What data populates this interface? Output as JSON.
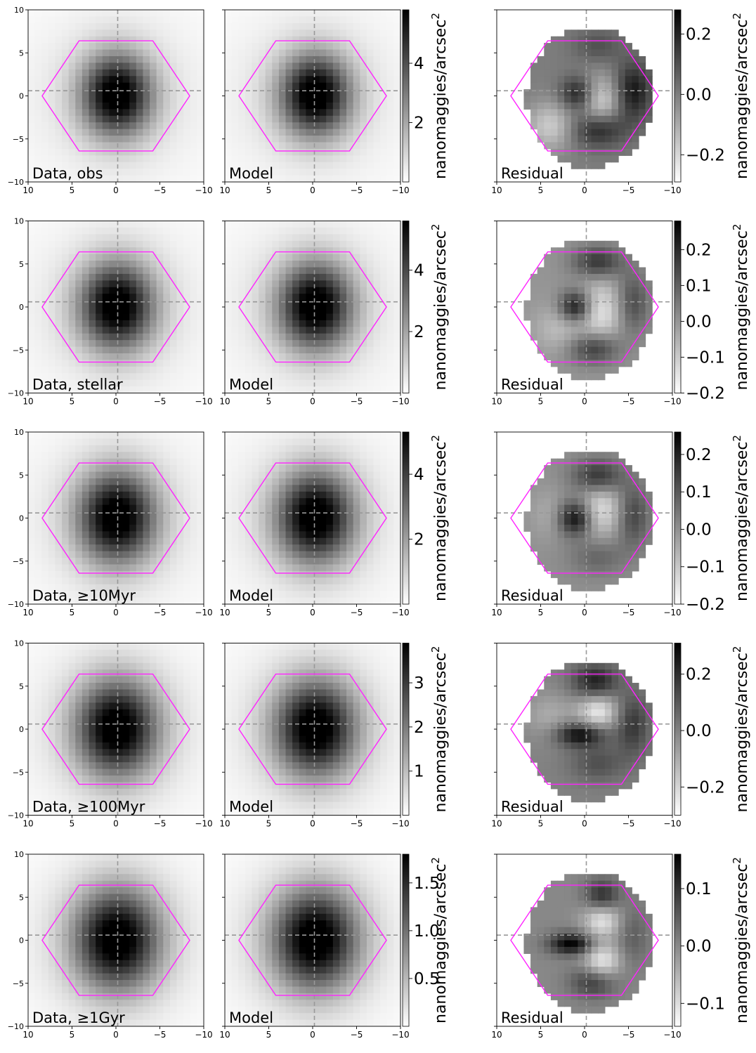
{
  "chart_data": {
    "type": "heatmap",
    "grid": false,
    "colormap": "gray_r",
    "x_axis": {
      "range": [
        10,
        -10
      ],
      "ticks": [
        10,
        5,
        0,
        -5,
        -10
      ],
      "tick_labels": [
        "10",
        "5",
        "0",
        "−5",
        "−10"
      ]
    },
    "y_axis": {
      "range": [
        -10,
        10
      ],
      "ticks": [
        10,
        5,
        0,
        -5,
        -10
      ],
      "tick_labels": [
        "10",
        "5",
        "0",
        "−5",
        "−10"
      ]
    },
    "crosshair": {
      "x": -0.2,
      "y": 0.6,
      "color": "#999999"
    },
    "hexagon": {
      "circumradius": 8.4,
      "center": [
        0,
        0
      ],
      "color": "#ff22ff"
    },
    "colorbar_label": "nanomaggies/arcsec",
    "colorbar_label_superscript": "2",
    "rows": [
      {
        "data_label": "Data, obs",
        "model_label": "Model",
        "residual_label": "Residual",
        "image_cbar": {
          "range": [
            0,
            5.8
          ],
          "ticks": [
            2,
            4
          ],
          "tick_labels": [
            "2",
            "4"
          ]
        },
        "residual_cbar": {
          "range": [
            -0.29,
            0.28
          ],
          "ticks": [
            -0.2,
            0.0,
            0.2
          ],
          "tick_labels": [
            "−0.2",
            "0.0",
            "0.2"
          ]
        },
        "residual_blobs": [
          {
            "x": 0.7,
            "y": 0.2,
            "amp": 0.24,
            "sx": 1.4,
            "sy": 1.4
          },
          {
            "x": -1.5,
            "y": -3.8,
            "amp": 0.24,
            "sx": 2.2,
            "sy": 1.5
          },
          {
            "x": -1.8,
            "y": -0.8,
            "amp": -0.22,
            "sx": 1.8,
            "sy": 2.2
          },
          {
            "x": -1.5,
            "y": 5.8,
            "amp": 0.1,
            "sx": 2.0,
            "sy": 1.4
          },
          {
            "x": -5.5,
            "y": 0.5,
            "amp": 0.24,
            "sx": 1.5,
            "sy": 2.4
          },
          {
            "x": 3.8,
            "y": -3.5,
            "amp": -0.18,
            "sx": 2.0,
            "sy": 2.0
          }
        ]
      },
      {
        "data_label": "Data, stellar",
        "model_label": "Model",
        "residual_label": "Residual",
        "image_cbar": {
          "range": [
            0,
            5.6
          ],
          "ticks": [
            2,
            4
          ],
          "tick_labels": [
            "2",
            "4"
          ]
        },
        "residual_cbar": {
          "range": [
            -0.2,
            0.28
          ],
          "ticks": [
            -0.2,
            -0.1,
            0.0,
            0.1,
            0.2
          ],
          "tick_labels": [
            "−0.2",
            "−0.1",
            "0.0",
            "0.1",
            "0.2"
          ]
        },
        "residual_blobs": [
          {
            "x": 1.0,
            "y": 0.0,
            "amp": 0.26,
            "sx": 1.3,
            "sy": 1.3
          },
          {
            "x": -1.5,
            "y": 5.2,
            "amp": 0.18,
            "sx": 2.0,
            "sy": 1.3
          },
          {
            "x": -1.0,
            "y": -4.8,
            "amp": 0.18,
            "sx": 2.0,
            "sy": 1.3
          },
          {
            "x": -1.8,
            "y": -0.5,
            "amp": -0.15,
            "sx": 1.8,
            "sy": 2.5
          },
          {
            "x": -5.5,
            "y": 0.5,
            "amp": 0.14,
            "sx": 1.3,
            "sy": 2.5
          },
          {
            "x": 2.8,
            "y": -2.5,
            "amp": -0.08,
            "sx": 2.0,
            "sy": 2.0
          }
        ]
      },
      {
        "data_label": "Data, ≥10Myr",
        "model_label": "Model",
        "residual_label": "Residual",
        "image_cbar": {
          "range": [
            0,
            5.3
          ],
          "ticks": [
            2,
            4
          ],
          "tick_labels": [
            "2",
            "4"
          ]
        },
        "residual_cbar": {
          "range": [
            -0.2,
            0.26
          ],
          "ticks": [
            -0.2,
            -0.1,
            0.0,
            0.1,
            0.2
          ],
          "tick_labels": [
            "−0.2",
            "−0.1",
            "0.0",
            "0.1",
            "0.2"
          ]
        },
        "residual_blobs": [
          {
            "x": 1.0,
            "y": 0.0,
            "amp": 0.25,
            "sx": 1.4,
            "sy": 1.4
          },
          {
            "x": -1.5,
            "y": 4.8,
            "amp": 0.18,
            "sx": 2.0,
            "sy": 1.4
          },
          {
            "x": -1.8,
            "y": 1.0,
            "amp": -0.15,
            "sx": 1.8,
            "sy": 2.2
          },
          {
            "x": -1.5,
            "y": -4.5,
            "amp": 0.08,
            "sx": 2.2,
            "sy": 1.5
          },
          {
            "x": -5.5,
            "y": 0.3,
            "amp": 0.14,
            "sx": 1.3,
            "sy": 2.5
          },
          {
            "x": 4.0,
            "y": 0.5,
            "amp": -0.05,
            "sx": 1.5,
            "sy": 2.0
          }
        ]
      },
      {
        "data_label": "Data, ≥100Myr",
        "model_label": "Model",
        "residual_label": "Residual",
        "image_cbar": {
          "range": [
            0,
            3.9
          ],
          "ticks": [
            1,
            2,
            3
          ],
          "tick_labels": [
            "1",
            "2",
            "3"
          ]
        },
        "residual_cbar": {
          "range": [
            -0.3,
            0.31
          ],
          "ticks": [
            -0.2,
            0.0,
            0.2
          ],
          "tick_labels": [
            "−0.2",
            "0.0",
            "0.2"
          ]
        },
        "residual_blobs": [
          {
            "x": 0.5,
            "y": -0.6,
            "amp": 0.3,
            "sx": 2.0,
            "sy": 1.0
          },
          {
            "x": -1.2,
            "y": 5.5,
            "amp": 0.24,
            "sx": 1.8,
            "sy": 1.4
          },
          {
            "x": -1.5,
            "y": 2.0,
            "amp": -0.25,
            "sx": 1.6,
            "sy": 1.5
          },
          {
            "x": -1.5,
            "y": -4.0,
            "amp": 0.12,
            "sx": 2.2,
            "sy": 1.5
          },
          {
            "x": -5.5,
            "y": 0.5,
            "amp": 0.18,
            "sx": 1.3,
            "sy": 2.5
          },
          {
            "x": 4.0,
            "y": 1.5,
            "amp": -0.1,
            "sx": 2.0,
            "sy": 2.0
          }
        ]
      },
      {
        "data_label": "Data, ≥1Gyr",
        "model_label": "Model",
        "residual_label": "Residual",
        "image_cbar": {
          "range": [
            0,
            1.8
          ],
          "ticks": [
            0.5,
            1.0,
            1.5
          ],
          "tick_labels": [
            "0.5",
            "1.0",
            "1.5"
          ]
        },
        "residual_cbar": {
          "range": [
            -0.14,
            0.16
          ],
          "ticks": [
            -0.1,
            0.0,
            0.1
          ],
          "tick_labels": [
            "−0.1",
            "0.0",
            "0.1"
          ]
        },
        "residual_blobs": [
          {
            "x": 1.5,
            "y": -0.4,
            "amp": 0.16,
            "sx": 1.8,
            "sy": 0.9
          },
          {
            "x": -2.0,
            "y": 5.0,
            "amp": 0.12,
            "sx": 1.4,
            "sy": 1.4
          },
          {
            "x": -1.0,
            "y": -4.8,
            "amp": 0.1,
            "sx": 1.8,
            "sy": 1.3
          },
          {
            "x": -2.0,
            "y": 2.5,
            "amp": -0.12,
            "sx": 1.5,
            "sy": 1.5
          },
          {
            "x": -2.0,
            "y": -2.5,
            "amp": -0.12,
            "sx": 1.5,
            "sy": 1.5
          },
          {
            "x": -5.5,
            "y": 0.5,
            "amp": 0.05,
            "sx": 1.3,
            "sy": 2.5
          }
        ]
      }
    ]
  }
}
